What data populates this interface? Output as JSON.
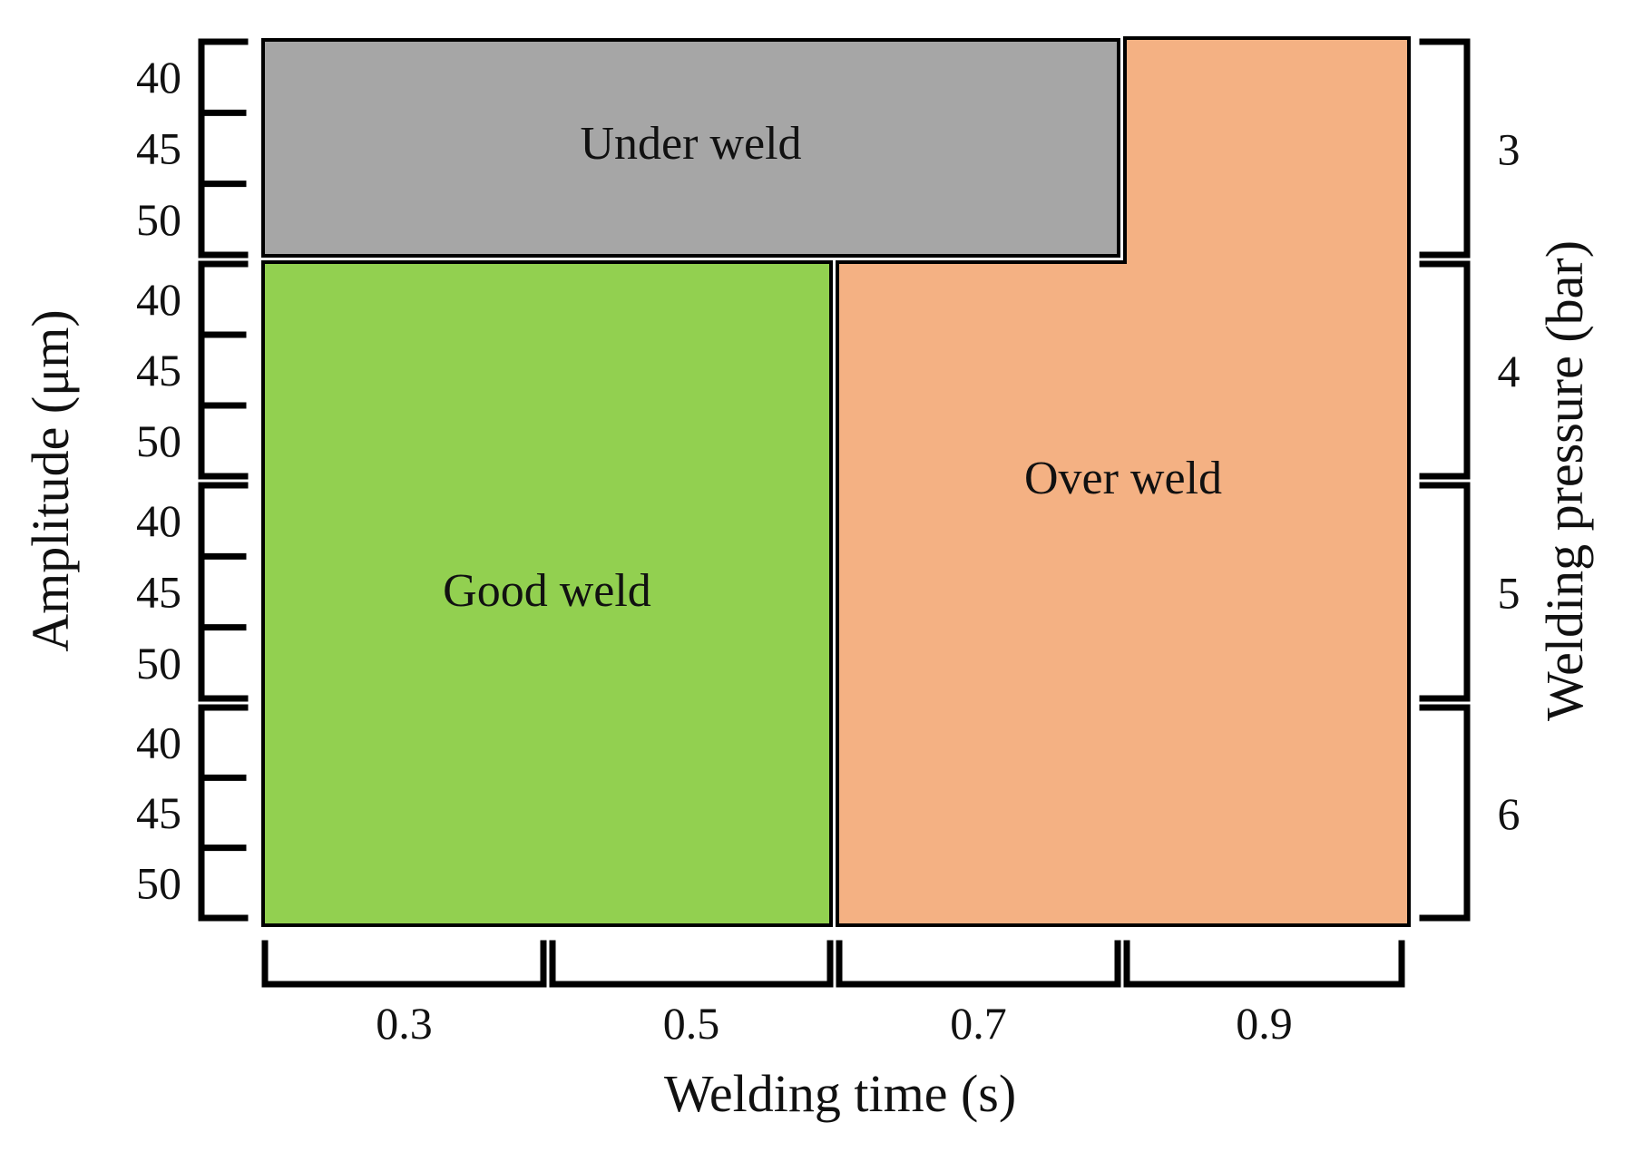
{
  "chart_data": {
    "type": "heatmap",
    "xlabel": "Welding time (s)",
    "ylabel": "Amplitude (μm)",
    "y2label": "Welding pressure (bar)",
    "x_categories": [
      "0.3",
      "0.5",
      "0.7",
      "0.9"
    ],
    "pressure_groups": [
      "3",
      "4",
      "5",
      "6"
    ],
    "amplitude_levels": [
      "40",
      "45",
      "50"
    ],
    "regions": [
      {
        "label": "Under weld",
        "color": "#a6a6a6",
        "welding_time": [
          "0.3",
          "0.5",
          "0.7"
        ],
        "welding_pressure": [
          "3"
        ],
        "amplitude": [
          "40",
          "45",
          "50"
        ]
      },
      {
        "label": "Good weld",
        "color": "#92d050",
        "welding_time": [
          "0.3",
          "0.5"
        ],
        "welding_pressure": [
          "4",
          "5",
          "6"
        ],
        "amplitude": [
          "40",
          "45",
          "50"
        ]
      },
      {
        "label": "Over weld",
        "color": "#f4b183",
        "welding_time": [
          "0.7",
          "0.9"
        ],
        "welding_pressure": [
          "3 (at 0.9 s only)",
          "4",
          "5",
          "6"
        ],
        "amplitude": [
          "40",
          "45",
          "50"
        ]
      }
    ]
  }
}
